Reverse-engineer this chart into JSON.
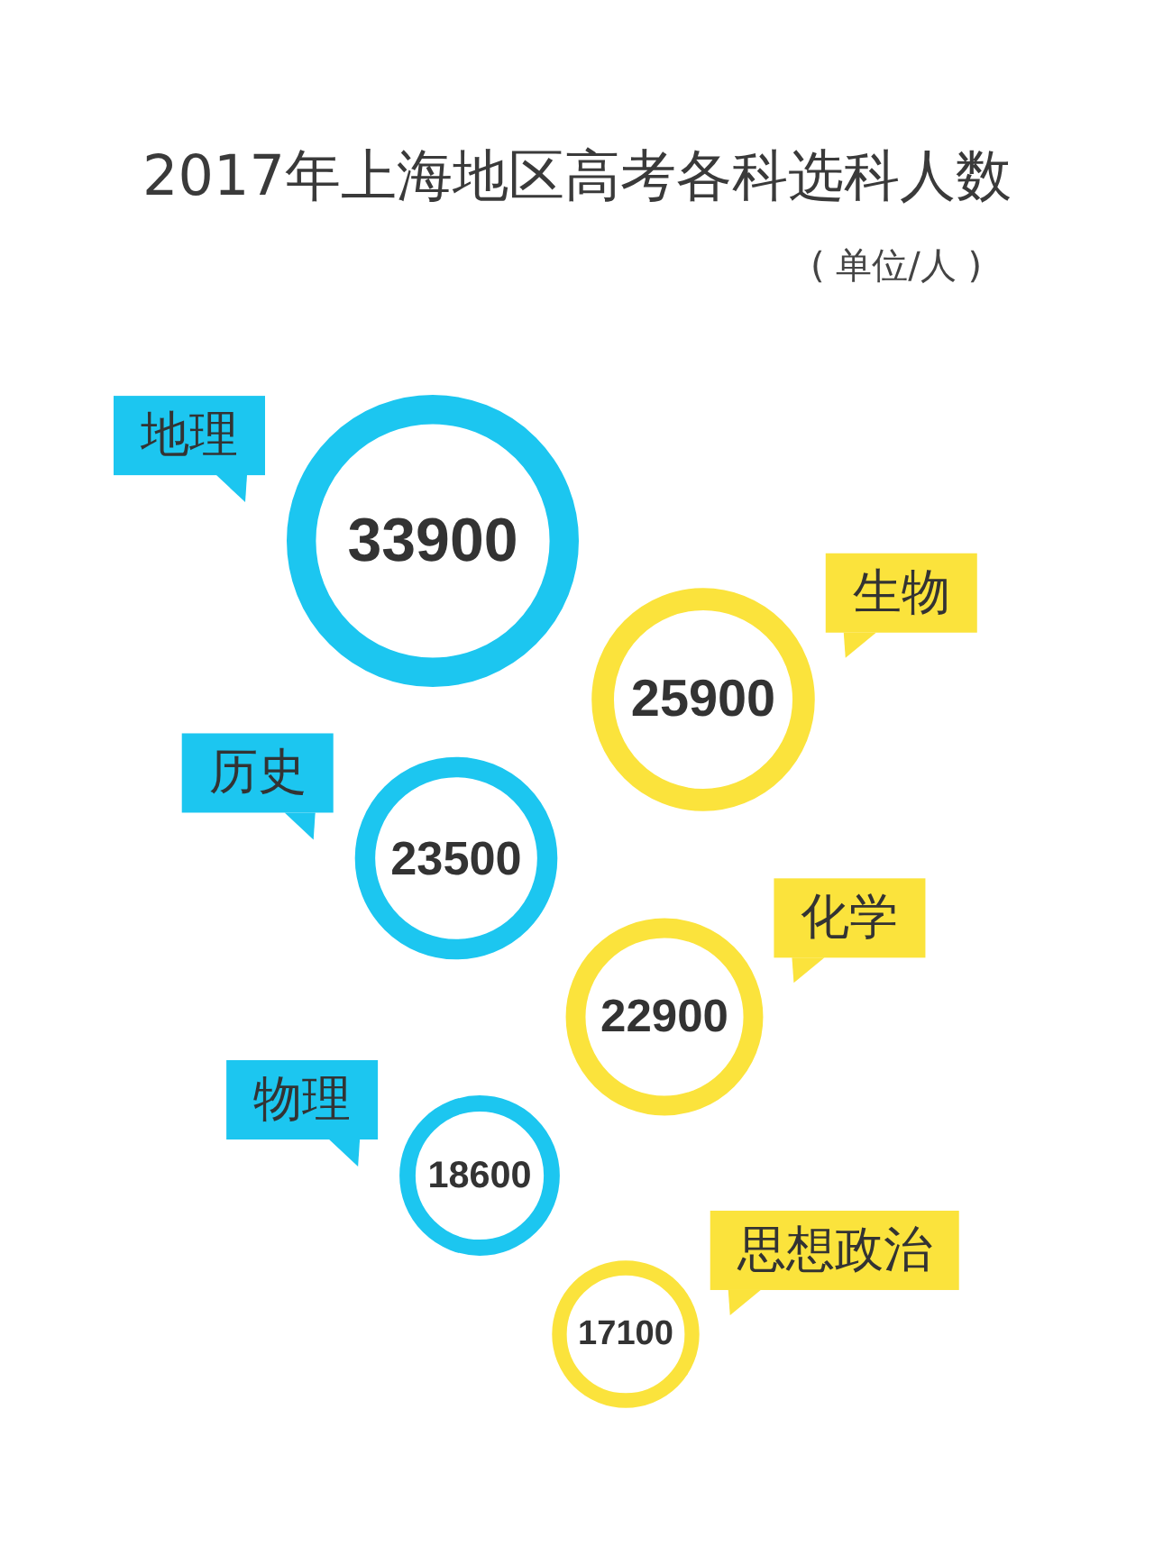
{
  "chart_data": {
    "type": "other",
    "title": "2017年上海地区高考各科选科人数",
    "subtitle": "( 单位/人 )",
    "categories": [
      "地理",
      "生物",
      "历史",
      "化学",
      "物理",
      "思想政治"
    ],
    "values": [
      33900,
      25900,
      23500,
      22900,
      18600,
      17100
    ],
    "colors": [
      "#1cc6f0",
      "#fbe33c",
      "#1cc6f0",
      "#fbe33c",
      "#1cc6f0",
      "#fbe33c"
    ],
    "data_labels": true
  }
}
